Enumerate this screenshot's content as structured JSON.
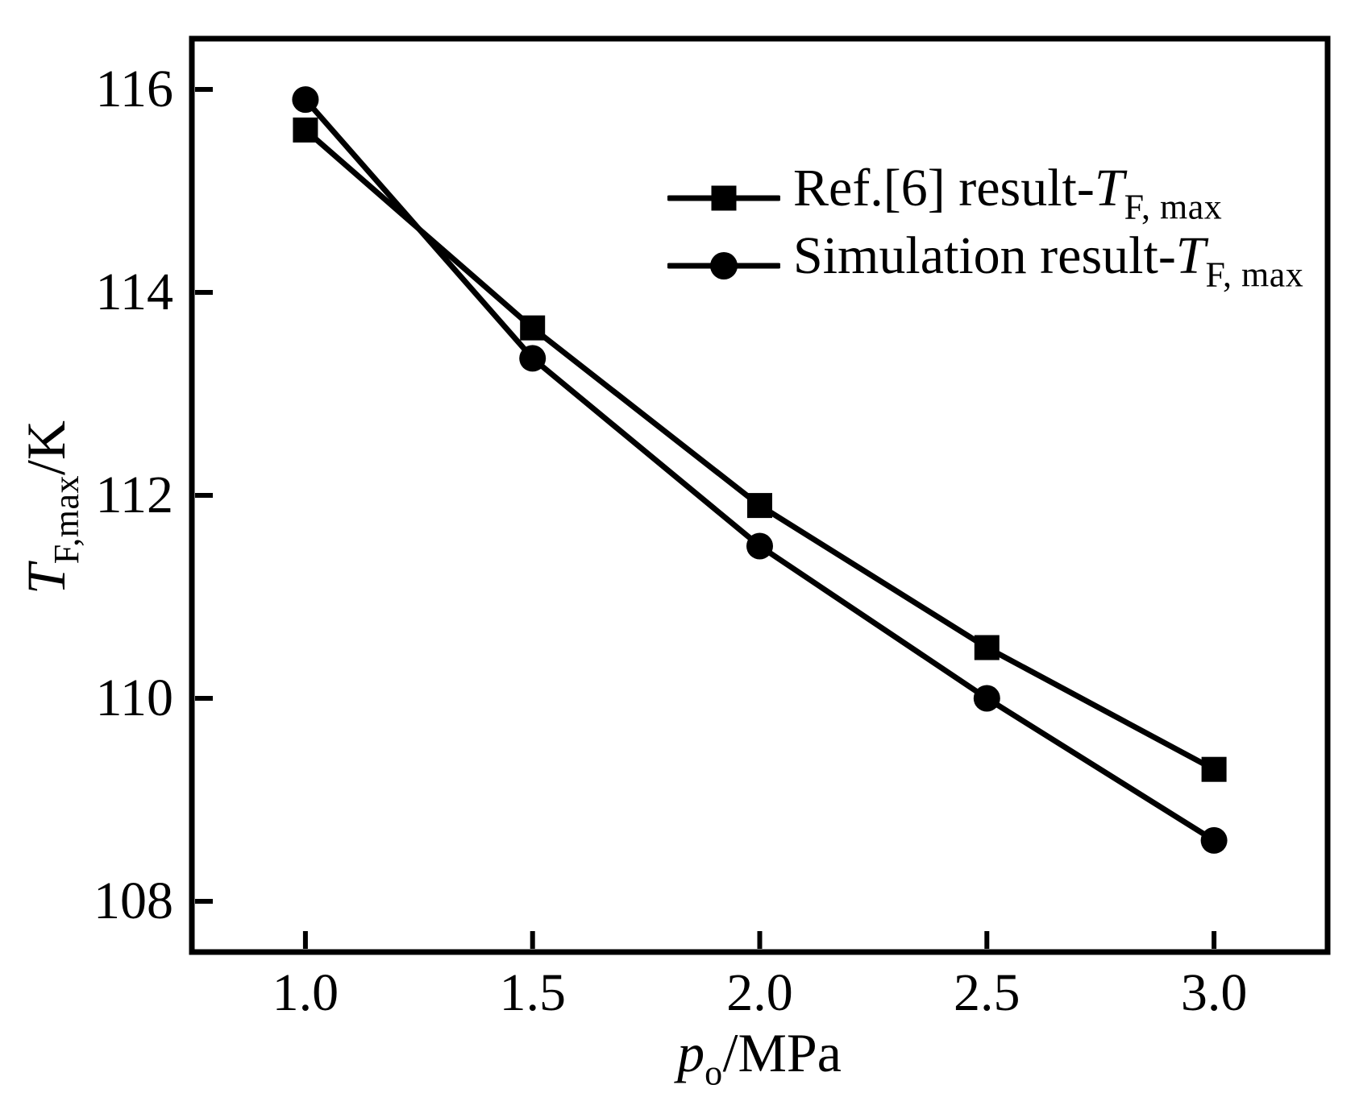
{
  "chart_data": {
    "type": "line",
    "title": "",
    "xlabel": "p_o/MPa",
    "ylabel": "T_F,max/K",
    "x": [
      1.0,
      1.5,
      2.0,
      2.5,
      3.0
    ],
    "series": [
      {
        "name": "Ref.[6] result-T_F,max",
        "marker": "square",
        "values": [
          115.6,
          113.65,
          111.9,
          110.5,
          109.3
        ]
      },
      {
        "name": "Simulation result-T_F,max",
        "marker": "circle",
        "values": [
          115.9,
          113.35,
          111.5,
          110.0,
          108.6
        ]
      }
    ],
    "xlim": [
      0.75,
      3.25
    ],
    "ylim": [
      107.5,
      116.5
    ],
    "xticks": [
      1.0,
      1.5,
      2.0,
      2.5,
      3.0
    ],
    "yticks": [
      116,
      114,
      112,
      110,
      108
    ],
    "grid": false,
    "legend_position": "upper-right-inside",
    "line_color": "#000000",
    "marker_color": "#000000"
  },
  "labels": {
    "xtick_labels": [
      "1.0",
      "1.5",
      "2.0",
      "2.5",
      "3.0"
    ],
    "ytick_labels": [
      "116",
      "114",
      "112",
      "110",
      "108"
    ],
    "xlabel": {
      "symbol": "p",
      "subscript": "o",
      "unit": "/MPa"
    },
    "ylabel": {
      "symbol": "T",
      "subscript": "F,max",
      "unit": "/K"
    },
    "legend": [
      {
        "prefix": "Ref.[6] result-",
        "symbol": "T",
        "subscript": "F, max"
      },
      {
        "prefix": "Simulation result-",
        "symbol": "T",
        "subscript": "F, max"
      }
    ]
  },
  "colors": {
    "foreground": "#000000",
    "background": "#ffffff"
  }
}
